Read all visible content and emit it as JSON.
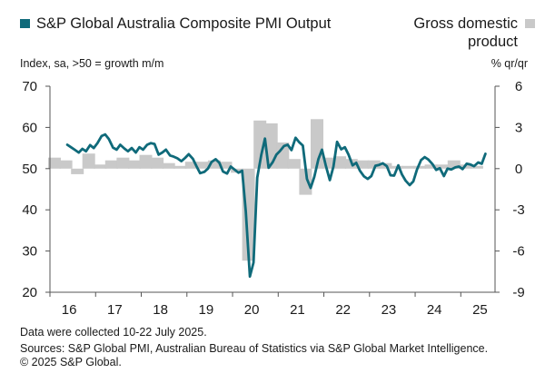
{
  "legend": {
    "pmi_label": "S&P Global Australia Composite PMI Output",
    "gdp_label": "Gross domestic product"
  },
  "axis_notes": {
    "left": "Index, sa, >50 = growth m/m",
    "right": "% qr/qr"
  },
  "footer": {
    "line1": "Data were collected 10-22 July 2025.",
    "line2": "Sources: S&P Global PMI, Australian Bureau of Statistics via S&P Global Market Intelligence.",
    "line3": "© 2025 S&P Global."
  },
  "colors": {
    "pmi": "#0f6a7a",
    "gdp": "#c9c9c9",
    "axis": "#555555"
  },
  "chart_data": {
    "type": "line+bar",
    "x_ticks": [
      "16",
      "17",
      "18",
      "19",
      "20",
      "21",
      "22",
      "23",
      "24",
      "25"
    ],
    "x_range": [
      2016.0,
      2025.75
    ],
    "left_axis": {
      "ticks": [
        70,
        60,
        50,
        40,
        30,
        20
      ],
      "ylim": [
        20,
        70
      ]
    },
    "right_axis": {
      "ticks": [
        "6",
        "3",
        "0",
        "-3",
        "-6",
        "-9"
      ],
      "ylim": [
        -9,
        6
      ]
    },
    "series": [
      {
        "name": "S&P Global Australia Composite PMI Output",
        "type": "line",
        "axis": "left",
        "x": [
          2016.38,
          2016.46,
          2016.54,
          2016.63,
          2016.71,
          2016.79,
          2016.88,
          2016.96,
          2017.04,
          2017.13,
          2017.21,
          2017.29,
          2017.38,
          2017.46,
          2017.54,
          2017.63,
          2017.71,
          2017.79,
          2017.88,
          2017.96,
          2018.04,
          2018.13,
          2018.21,
          2018.29,
          2018.38,
          2018.46,
          2018.54,
          2018.63,
          2018.71,
          2018.79,
          2018.88,
          2018.96,
          2019.04,
          2019.13,
          2019.21,
          2019.29,
          2019.38,
          2019.46,
          2019.54,
          2019.63,
          2019.71,
          2019.79,
          2019.88,
          2019.96,
          2020.04,
          2020.13,
          2020.21,
          2020.29,
          2020.38,
          2020.46,
          2020.54,
          2020.63,
          2020.71,
          2020.79,
          2020.88,
          2020.96,
          2021.04,
          2021.13,
          2021.21,
          2021.29,
          2021.38,
          2021.46,
          2021.54,
          2021.63,
          2021.71,
          2021.79,
          2021.88,
          2021.96,
          2022.04,
          2022.13,
          2022.21,
          2022.29,
          2022.38,
          2022.46,
          2022.54,
          2022.63,
          2022.71,
          2022.79,
          2022.88,
          2022.96,
          2023.04,
          2023.13,
          2023.21,
          2023.29,
          2023.38,
          2023.46,
          2023.54,
          2023.63,
          2023.71,
          2023.79,
          2023.88,
          2023.96,
          2024.04,
          2024.13,
          2024.21,
          2024.29,
          2024.38,
          2024.46,
          2024.54,
          2024.63,
          2024.71,
          2024.79,
          2024.88,
          2024.96,
          2025.04,
          2025.13,
          2025.21,
          2025.29,
          2025.38,
          2025.46,
          2025.54
        ],
        "values": [
          55.8,
          55.2,
          54.6,
          53.9,
          54.8,
          54.2,
          55.7,
          55.0,
          56.2,
          57.9,
          58.3,
          57.2,
          55.1,
          54.6,
          55.8,
          54.9,
          54.2,
          55.0,
          53.9,
          55.2,
          54.6,
          55.8,
          56.2,
          56.0,
          53.4,
          53.9,
          54.6,
          53.2,
          52.9,
          52.5,
          51.8,
          52.6,
          53.5,
          52.4,
          50.6,
          48.9,
          49.2,
          50.0,
          51.6,
          52.3,
          51.4,
          49.3,
          48.8,
          50.5,
          49.8,
          49.0,
          49.5,
          39.6,
          23.8,
          27.2,
          47.8,
          53.4,
          57.3,
          50.2,
          51.6,
          53.4,
          54.3,
          55.5,
          55.8,
          54.5,
          57.5,
          56.4,
          55.6,
          47.5,
          45.3,
          48.0,
          52.3,
          54.6,
          50.9,
          47.2,
          50.5,
          56.5,
          54.7,
          55.2,
          53.4,
          50.8,
          51.4,
          49.5,
          48.1,
          47.5,
          48.2,
          50.7,
          50.9,
          51.3,
          50.6,
          48.4,
          48.3,
          50.8,
          48.6,
          47.1,
          46.0,
          46.9,
          49.8,
          52.1,
          52.8,
          52.2,
          51.1,
          49.7,
          50.1,
          48.2,
          50.0,
          49.8,
          50.3,
          50.5,
          49.9,
          51.2,
          51.0,
          50.6,
          51.5,
          51.2,
          53.6
        ]
      },
      {
        "name": "Gross domestic product",
        "type": "bar",
        "axis": "right",
        "x": [
          2016.1,
          2016.35,
          2016.6,
          2016.85,
          2017.1,
          2017.35,
          2017.6,
          2017.85,
          2018.1,
          2018.35,
          2018.6,
          2018.85,
          2019.1,
          2019.35,
          2019.6,
          2019.85,
          2020.1,
          2020.35,
          2020.6,
          2020.85,
          2021.1,
          2021.35,
          2021.6,
          2021.85,
          2022.1,
          2022.35,
          2022.6,
          2022.85,
          2023.1,
          2023.35,
          2023.6,
          2023.85,
          2024.1,
          2024.35,
          2024.6,
          2024.85,
          2025.1,
          2025.35
        ],
        "values": [
          0.8,
          0.6,
          -0.4,
          1.1,
          0.3,
          0.6,
          0.8,
          0.6,
          1.0,
          0.8,
          0.4,
          0.2,
          0.5,
          0.5,
          0.6,
          0.5,
          -0.3,
          -6.7,
          3.5,
          3.3,
          1.9,
          0.7,
          -1.9,
          3.6,
          0.8,
          0.9,
          0.7,
          0.6,
          0.6,
          0.4,
          0.2,
          0.2,
          0.2,
          0.3,
          0.3,
          0.6,
          0.3,
          0.2
        ]
      }
    ]
  }
}
